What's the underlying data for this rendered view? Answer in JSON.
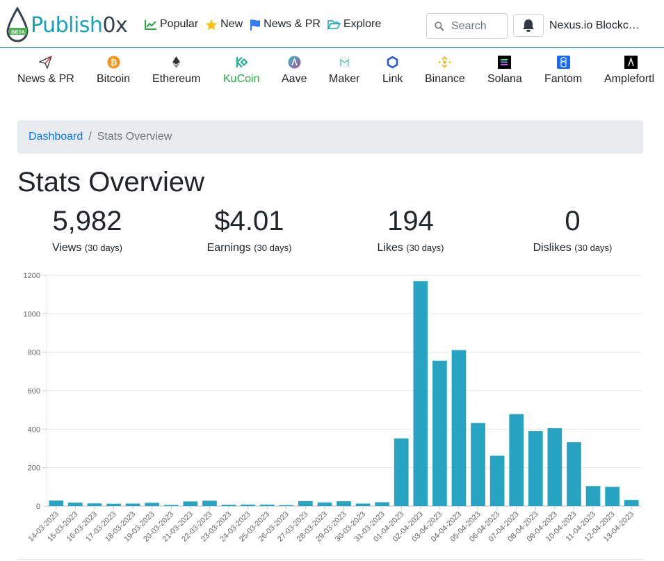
{
  "header": {
    "logo": {
      "brand": "Publish",
      "brand_suffix": "0x",
      "badge": "BETA"
    },
    "nav": [
      {
        "label": "Popular",
        "icon": "chart-line-icon",
        "color": "#28a745"
      },
      {
        "label": "New",
        "icon": "star-icon",
        "color": "#ffc107"
      },
      {
        "label": "News & PR",
        "icon": "flag-icon",
        "color": "#2f7cf6"
      },
      {
        "label": "Explore",
        "icon": "folder-open-icon",
        "color": "#17a2b8"
      }
    ],
    "search": {
      "placeholder": "Search",
      "value": ""
    },
    "account_name": "Nexus.io Blockchain"
  },
  "coins": [
    {
      "label": "News & PR",
      "icon": "paper-plane-icon"
    },
    {
      "label": "Bitcoin",
      "icon": "bitcoin-icon",
      "color": "#f7931a"
    },
    {
      "label": "Ethereum",
      "icon": "ethereum-icon"
    },
    {
      "label": "KuCoin",
      "icon": "kucoin-icon",
      "color": "#23af91",
      "active": true
    },
    {
      "label": "Aave",
      "icon": "aave-icon"
    },
    {
      "label": "Maker",
      "icon": "maker-icon"
    },
    {
      "label": "Link",
      "icon": "chainlink-icon",
      "color": "#2a5ada"
    },
    {
      "label": "Binance",
      "icon": "binance-icon",
      "color": "#f3ba2f"
    },
    {
      "label": "Solana",
      "icon": "solana-icon"
    },
    {
      "label": "Fantom",
      "icon": "fantom-icon",
      "color": "#1969ff"
    },
    {
      "label": "Ampleforth",
      "icon": "ampleforth-icon"
    }
  ],
  "breadcrumb": {
    "root": "Dashboard",
    "current": "Stats Overview"
  },
  "page_title": "Stats Overview",
  "stats": [
    {
      "value": "5,982",
      "label": "Views",
      "period": "(30 days)"
    },
    {
      "value": "$4.01",
      "label": "Earnings",
      "period": "(30 days)"
    },
    {
      "value": "194",
      "label": "Likes",
      "period": "(30 days)"
    },
    {
      "value": "0",
      "label": "Dislikes",
      "period": "(30 days)"
    }
  ],
  "chart_data": {
    "type": "bar",
    "color": "#27a4c2",
    "ylim": [
      0,
      1200
    ],
    "yticks": [
      0,
      200,
      400,
      600,
      800,
      1000,
      1200
    ],
    "grid": true,
    "categories": [
      "14-03-2023",
      "15-03-2023",
      "16-03-2023",
      "17-03-2023",
      "18-03-2023",
      "19-03-2023",
      "20-03-2023",
      "21-03-2023",
      "22-03-2023",
      "23-03-2023",
      "24-03-2023",
      "25-03-2023",
      "26-03-2023",
      "27-03-2023",
      "28-03-2023",
      "29-03-2023",
      "30-03-2023",
      "31-03-2023",
      "01-04-2023",
      "02-04-2023",
      "03-04-2023",
      "04-04-2023",
      "05-04-2023",
      "06-04-2023",
      "07-04-2023",
      "08-04-2023",
      "09-04-2023",
      "10-04-2023",
      "11-04-2023",
      "12-04-2023",
      "13-04-2023"
    ],
    "values": [
      29,
      18,
      14,
      12,
      13,
      17,
      6,
      24,
      28,
      7,
      8,
      8,
      5,
      26,
      19,
      25,
      13,
      20,
      352,
      1170,
      756,
      811,
      432,
      262,
      478,
      390,
      405,
      332,
      104,
      100,
      32
    ]
  }
}
